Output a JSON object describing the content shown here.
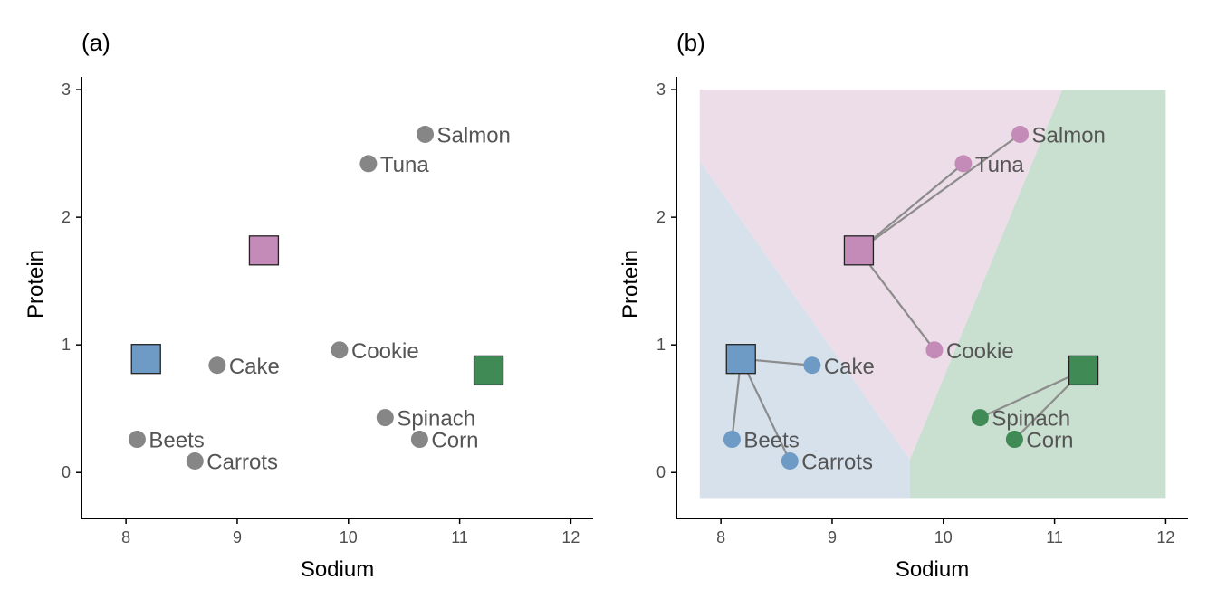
{
  "chart_data": [
    {
      "type": "scatter",
      "title": "(a)",
      "xlabel": "Sodium",
      "ylabel": "Protein",
      "xlim": [
        7.6,
        12.2
      ],
      "ylim": [
        -0.36,
        3.1
      ],
      "xticks": [
        "8",
        "9",
        "10",
        "11",
        "12"
      ],
      "yticks": [
        "0",
        "1",
        "2",
        "3"
      ],
      "points": [
        {
          "label": "Salmon",
          "x": 10.69,
          "y": 2.65
        },
        {
          "label": "Tuna",
          "x": 10.18,
          "y": 2.42
        },
        {
          "label": "Cookie",
          "x": 9.92,
          "y": 0.96
        },
        {
          "label": "Cake",
          "x": 8.82,
          "y": 0.84
        },
        {
          "label": "Spinach",
          "x": 10.33,
          "y": 0.43
        },
        {
          "label": "Corn",
          "x": 10.64,
          "y": 0.26
        },
        {
          "label": "Beets",
          "x": 8.1,
          "y": 0.26
        },
        {
          "label": "Carrots",
          "x": 8.62,
          "y": 0.09
        }
      ],
      "centroids": [
        {
          "cluster": "blue",
          "x": 8.18,
          "y": 0.89
        },
        {
          "cluster": "pink",
          "x": 9.24,
          "y": 1.74
        },
        {
          "cluster": "green",
          "x": 11.26,
          "y": 0.8
        }
      ]
    },
    {
      "type": "scatter",
      "title": "(b)",
      "xlabel": "Sodium",
      "ylabel": "Protein",
      "xlim": [
        7.6,
        12.2
      ],
      "ylim": [
        -0.36,
        3.1
      ],
      "xticks": [
        "8",
        "9",
        "10",
        "11",
        "12"
      ],
      "yticks": [
        "0",
        "1",
        "2",
        "3"
      ],
      "points": [
        {
          "label": "Salmon",
          "x": 10.69,
          "y": 2.65,
          "cluster": "pink"
        },
        {
          "label": "Tuna",
          "x": 10.18,
          "y": 2.42,
          "cluster": "pink"
        },
        {
          "label": "Cookie",
          "x": 9.92,
          "y": 0.96,
          "cluster": "pink"
        },
        {
          "label": "Cake",
          "x": 8.82,
          "y": 0.84,
          "cluster": "blue"
        },
        {
          "label": "Spinach",
          "x": 10.33,
          "y": 0.43,
          "cluster": "green"
        },
        {
          "label": "Corn",
          "x": 10.64,
          "y": 0.26,
          "cluster": "green"
        },
        {
          "label": "Beets",
          "x": 8.1,
          "y": 0.26,
          "cluster": "blue"
        },
        {
          "label": "Carrots",
          "x": 8.62,
          "y": 0.09,
          "cluster": "blue"
        }
      ],
      "centroids": [
        {
          "cluster": "blue",
          "x": 8.18,
          "y": 0.89
        },
        {
          "cluster": "pink",
          "x": 9.24,
          "y": 1.74
        },
        {
          "cluster": "green",
          "x": 11.26,
          "y": 0.8
        }
      ],
      "regions": [
        {
          "cluster": "blue",
          "polygon": [
            [
              7.81,
              2.44
            ],
            [
              9.7,
              0.1
            ],
            [
              9.7,
              -0.2
            ],
            [
              7.81,
              -0.2
            ]
          ]
        },
        {
          "cluster": "pink",
          "polygon": [
            [
              7.81,
              3.0
            ],
            [
              11.07,
              3.0
            ],
            [
              9.7,
              0.1
            ],
            [
              7.81,
              2.44
            ]
          ]
        },
        {
          "cluster": "green",
          "polygon": [
            [
              11.07,
              3.0
            ],
            [
              12.0,
              3.0
            ],
            [
              12.0,
              -0.2
            ],
            [
              9.7,
              -0.2
            ],
            [
              9.7,
              0.1
            ]
          ]
        }
      ]
    }
  ],
  "colors": {
    "blue": "#6e9bc5",
    "pink": "#c48bb8",
    "green": "#3f8a55",
    "grey": "#808080",
    "region_blue": "#d6e1ec",
    "region_pink": "#eddde8",
    "region_green": "#c9dfcf"
  }
}
